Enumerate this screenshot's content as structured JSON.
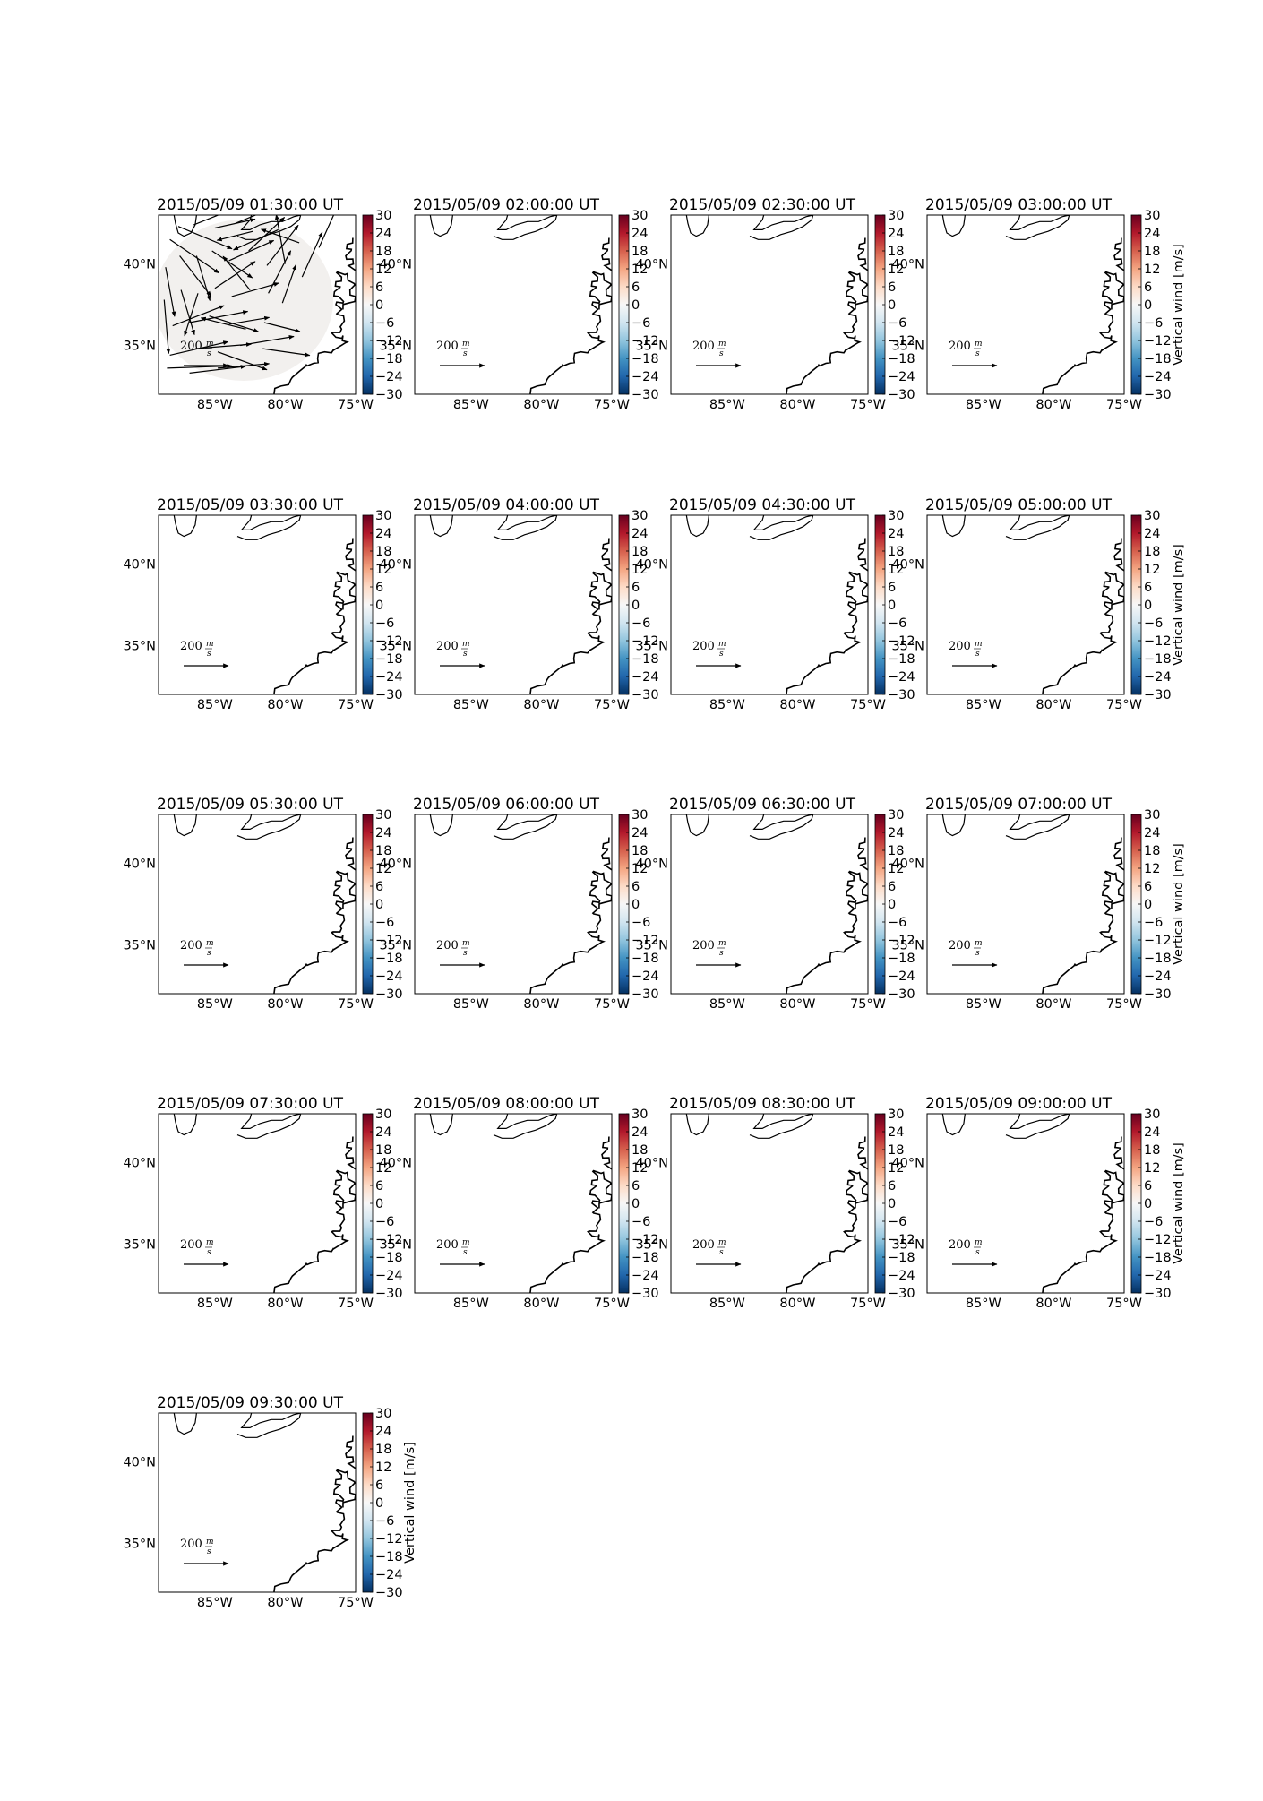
{
  "chart_data": {
    "type": "map-quiver-grid",
    "colorbar": {
      "label": "Vertical wind [m/s]",
      "ticks": [
        "30",
        "24",
        "18",
        "12",
        "6",
        "0",
        "−6",
        "−12",
        "−18",
        "−24",
        "−30"
      ],
      "range": [
        -30,
        30
      ],
      "colors": [
        "#053061",
        "#2166ac",
        "#4393c3",
        "#92c5de",
        "#d1e5f0",
        "#f7f7f7",
        "#fddbc7",
        "#f4a582",
        "#d6604d",
        "#b2182b",
        "#67001f"
      ]
    },
    "x_ticks": [
      "85°W",
      "80°W",
      "75°W"
    ],
    "y_ticks": [
      "40°N",
      "35°N"
    ],
    "lon_range": [
      -89,
      -75
    ],
    "lat_range": [
      32,
      43
    ],
    "quiver_key": {
      "value": "200",
      "unit_num": "m",
      "unit_den": "s"
    },
    "panels": [
      {
        "title": "2015/05/09 01:30:00 UT",
        "has_vectors": true
      },
      {
        "title": "2015/05/09 02:00:00 UT",
        "has_vectors": false
      },
      {
        "title": "2015/05/09 02:30:00 UT",
        "has_vectors": false
      },
      {
        "title": "2015/05/09 03:00:00 UT",
        "has_vectors": false
      },
      {
        "title": "2015/05/09 03:30:00 UT",
        "has_vectors": false
      },
      {
        "title": "2015/05/09 04:00:00 UT",
        "has_vectors": false
      },
      {
        "title": "2015/05/09 04:30:00 UT",
        "has_vectors": false
      },
      {
        "title": "2015/05/09 05:00:00 UT",
        "has_vectors": false
      },
      {
        "title": "2015/05/09 05:30:00 UT",
        "has_vectors": false
      },
      {
        "title": "2015/05/09 06:00:00 UT",
        "has_vectors": false
      },
      {
        "title": "2015/05/09 06:30:00 UT",
        "has_vectors": false
      },
      {
        "title": "2015/05/09 07:00:00 UT",
        "has_vectors": false
      },
      {
        "title": "2015/05/09 07:30:00 UT",
        "has_vectors": false
      },
      {
        "title": "2015/05/09 08:00:00 UT",
        "has_vectors": false
      },
      {
        "title": "2015/05/09 08:30:00 UT",
        "has_vectors": false
      },
      {
        "title": "2015/05/09 09:00:00 UT",
        "has_vectors": false
      },
      {
        "title": "2015/05/09 09:30:00 UT",
        "has_vectors": false
      }
    ],
    "vectors_panel_0": [
      {
        "lon": -88.2,
        "lat": 41.5,
        "u": 220,
        "v": -150
      },
      {
        "lon": -87.6,
        "lat": 42.3,
        "u": 240,
        "v": -100
      },
      {
        "lon": -86.5,
        "lat": 42.4,
        "u": 150,
        "v": 60
      },
      {
        "lon": -85.0,
        "lat": 42.2,
        "u": 180,
        "v": 40
      },
      {
        "lon": -83.5,
        "lat": 42.5,
        "u": 120,
        "v": 50
      },
      {
        "lon": -82.3,
        "lat": 42.0,
        "u": -160,
        "v": -40
      },
      {
        "lon": -80.5,
        "lat": 42.1,
        "u": -200,
        "v": -90
      },
      {
        "lon": -79.0,
        "lat": 41.3,
        "u": -170,
        "v": 60
      },
      {
        "lon": -77.6,
        "lat": 41.0,
        "u": 90,
        "v": 200
      },
      {
        "lon": -88.5,
        "lat": 39.8,
        "u": 40,
        "v": -220
      },
      {
        "lon": -87.5,
        "lat": 40.5,
        "u": 140,
        "v": -180
      },
      {
        "lon": -86.3,
        "lat": 40.5,
        "u": 60,
        "v": -200
      },
      {
        "lon": -85.2,
        "lat": 40.8,
        "u": 180,
        "v": -120
      },
      {
        "lon": -84.0,
        "lat": 40.2,
        "u": 200,
        "v": 90
      },
      {
        "lon": -82.6,
        "lat": 40.8,
        "u": 160,
        "v": 150
      },
      {
        "lon": -81.3,
        "lat": 39.9,
        "u": 140,
        "v": 180
      },
      {
        "lon": -80.0,
        "lat": 40.0,
        "u": -40,
        "v": 220
      },
      {
        "lon": -78.8,
        "lat": 39.2,
        "u": 90,
        "v": 200
      },
      {
        "lon": -88.6,
        "lat": 37.8,
        "u": 20,
        "v": -240
      },
      {
        "lon": -87.4,
        "lat": 38.4,
        "u": 60,
        "v": -200
      },
      {
        "lon": -86.2,
        "lat": 38.2,
        "u": -60,
        "v": -190
      },
      {
        "lon": -85.0,
        "lat": 38.5,
        "u": 180,
        "v": 120
      },
      {
        "lon": -83.8,
        "lat": 38.0,
        "u": 210,
        "v": 60
      },
      {
        "lon": -82.5,
        "lat": 38.4,
        "u": -120,
        "v": 150
      },
      {
        "lon": -81.2,
        "lat": 38.2,
        "u": 100,
        "v": 190
      },
      {
        "lon": -80.2,
        "lat": 37.6,
        "u": 60,
        "v": 170
      },
      {
        "lon": -88.0,
        "lat": 36.2,
        "u": 230,
        "v": 90
      },
      {
        "lon": -86.8,
        "lat": 36.4,
        "u": 260,
        "v": 50
      },
      {
        "lon": -85.4,
        "lat": 36.8,
        "u": 220,
        "v": -70
      },
      {
        "lon": -84.0,
        "lat": 36.3,
        "u": 180,
        "v": 30
      },
      {
        "lon": -82.8,
        "lat": 36.0,
        "u": -200,
        "v": 50
      },
      {
        "lon": -81.5,
        "lat": 36.4,
        "u": 160,
        "v": -40
      },
      {
        "lon": -88.2,
        "lat": 34.4,
        "u": 260,
        "v": 60
      },
      {
        "lon": -86.4,
        "lat": 34.8,
        "u": 250,
        "v": 20
      },
      {
        "lon": -84.8,
        "lat": 34.6,
        "u": 220,
        "v": -80
      },
      {
        "lon": -83.2,
        "lat": 35.0,
        "u": 240,
        "v": 40
      },
      {
        "lon": -81.6,
        "lat": 34.8,
        "u": 210,
        "v": -30
      },
      {
        "lon": -88.4,
        "lat": 33.6,
        "u": 290,
        "v": 10
      },
      {
        "lon": -86.8,
        "lat": 33.3,
        "u": 250,
        "v": 30
      },
      {
        "lon": -84.8,
        "lat": 33.6,
        "u": 230,
        "v": 20
      }
    ]
  }
}
